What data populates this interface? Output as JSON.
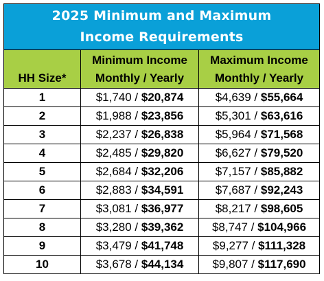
{
  "title": {
    "line1": "2025 Minimum and Maximum",
    "line2": "Income Requirements"
  },
  "headers": {
    "hh_size": "HH Size*",
    "min": {
      "title": "Minimum Income",
      "monthly": "Monthly",
      "sep": " / ",
      "yearly": "Yearly"
    },
    "max": {
      "title": "Maximum Income",
      "monthly": "Monthly",
      "sep": " / ",
      "yearly": "Yearly"
    }
  },
  "rows": [
    {
      "size": "1",
      "min_monthly": "$1,740",
      "min_yearly": "$20,874",
      "max_monthly": "$4,639",
      "max_yearly": "$55,664"
    },
    {
      "size": "2",
      "min_monthly": "$1,988",
      "min_yearly": "$23,856",
      "max_monthly": "$5,301",
      "max_yearly": "$63,616"
    },
    {
      "size": "3",
      "min_monthly": "$2,237",
      "min_yearly": "$26,838",
      "max_monthly": "$5,964",
      "max_yearly": "$71,568"
    },
    {
      "size": "4",
      "min_monthly": "$2,485",
      "min_yearly": "$29,820",
      "max_monthly": "$6,627",
      "max_yearly": "$79,520"
    },
    {
      "size": "5",
      "min_monthly": "$2,684",
      "min_yearly": "$32,206",
      "max_monthly": "$7,157",
      "max_yearly": "$85,882"
    },
    {
      "size": "6",
      "min_monthly": "$2,883",
      "min_yearly": "$34,591",
      "max_monthly": "$7,687",
      "max_yearly": "$92,243"
    },
    {
      "size": "7",
      "min_monthly": "$3,081",
      "min_yearly": "$36,977",
      "max_monthly": "$8,217",
      "max_yearly": "$98,605"
    },
    {
      "size": "8",
      "min_monthly": "$3,280",
      "min_yearly": "$39,362",
      "max_monthly": "$8,747",
      "max_yearly": "$104,966"
    },
    {
      "size": "9",
      "min_monthly": "$3,479",
      "min_yearly": "$41,748",
      "max_monthly": "$9,277",
      "max_yearly": "$111,328"
    },
    {
      "size": "10",
      "min_monthly": "$3,678",
      "min_yearly": "$44,134",
      "max_monthly": "$9,807",
      "max_yearly": "$117,690"
    }
  ],
  "colors": {
    "title_bg": "#0aa0d8",
    "header_bg": "#a8cf45"
  }
}
